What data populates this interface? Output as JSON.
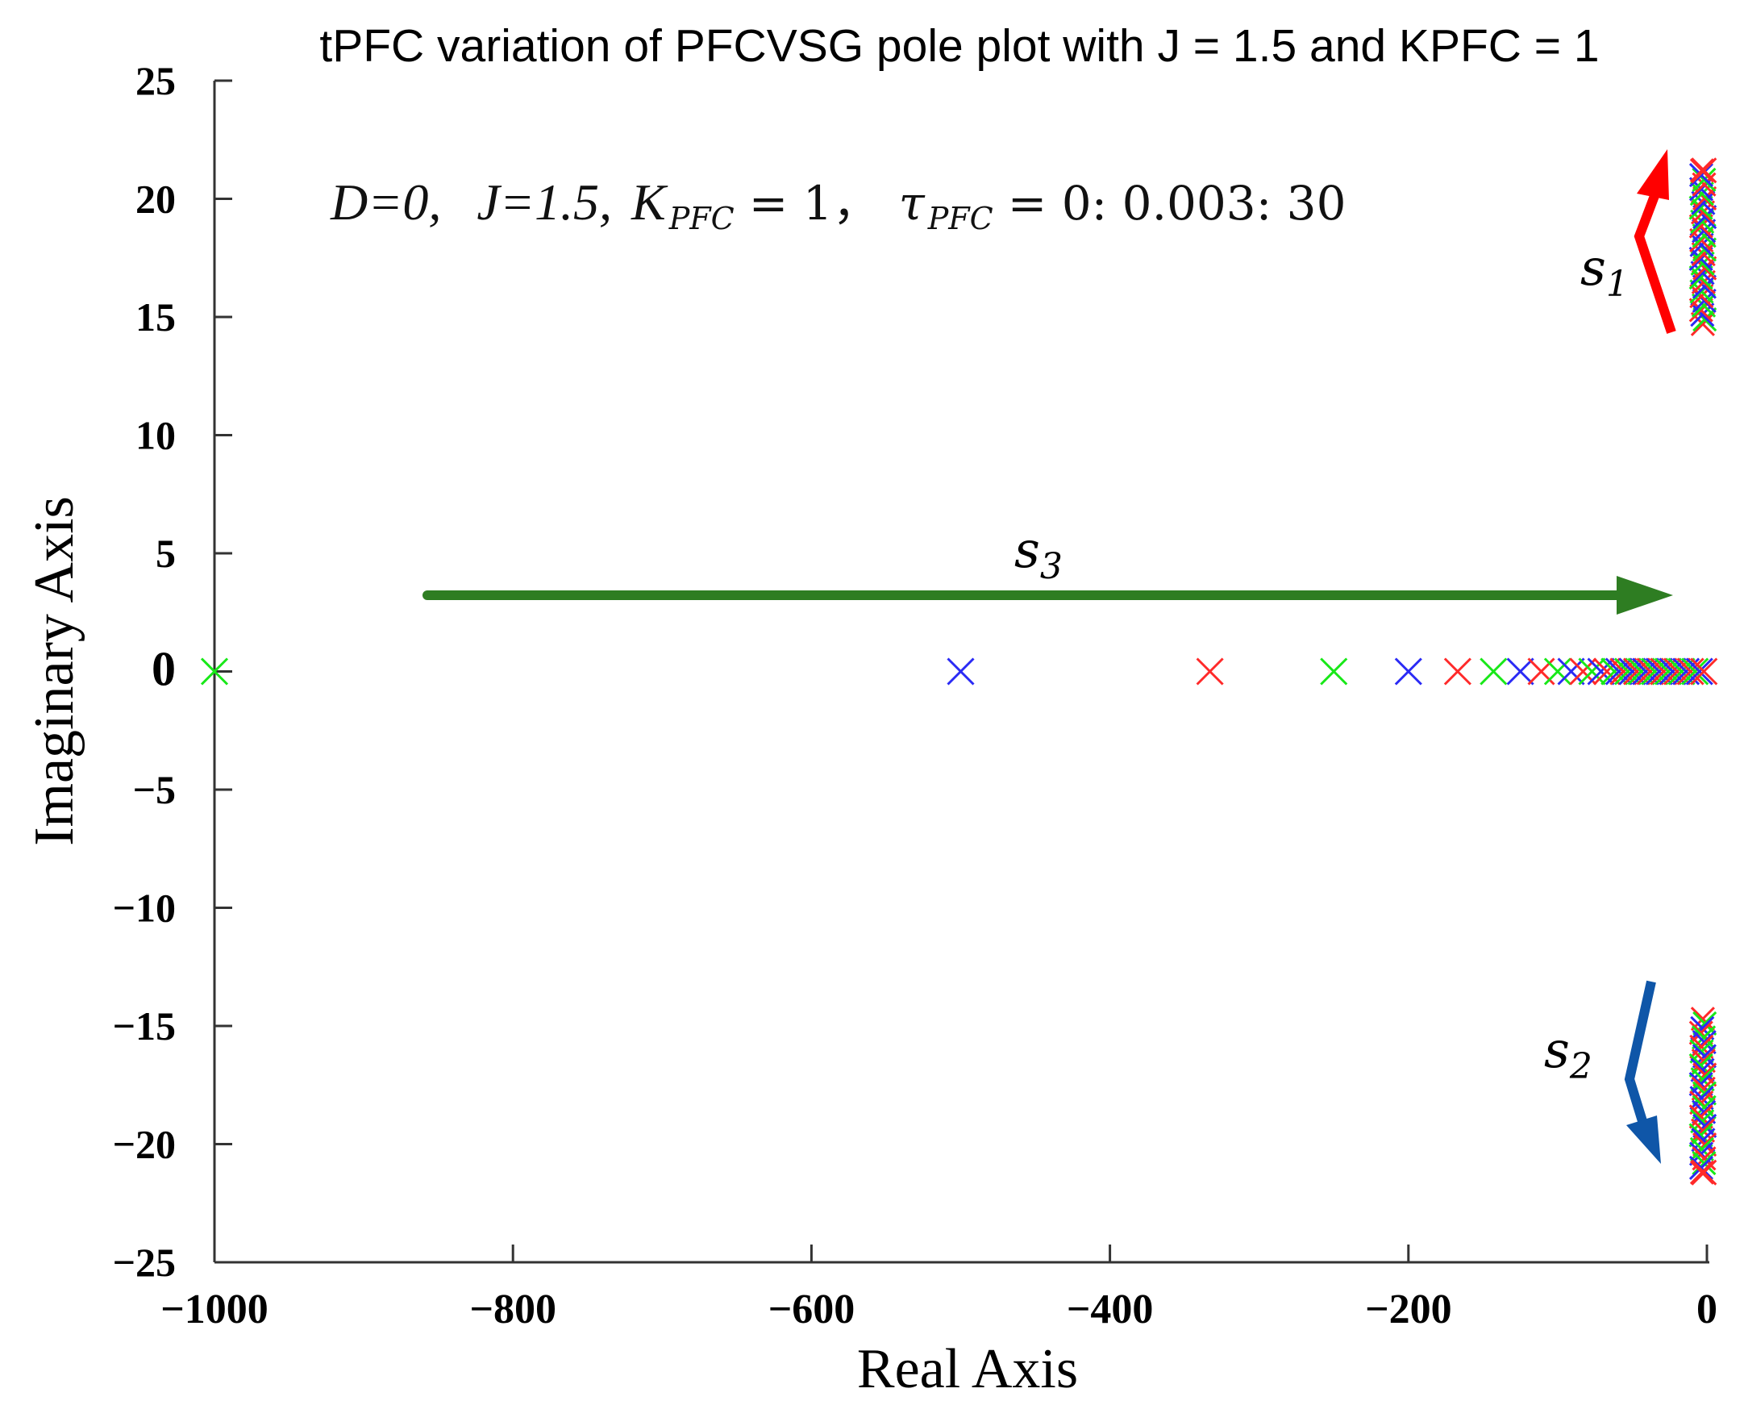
{
  "chart_data": {
    "type": "scatter",
    "title": "tPFC variation of PFCVSG pole plot with J = 1.5 and KPFC = 1",
    "xlabel": "Real Axis",
    "ylabel": "Imaginary Axis",
    "xlim": [
      -1000,
      0
    ],
    "ylim": [
      -25,
      25
    ],
    "xticks": [
      -1000,
      -800,
      -600,
      -400,
      -200,
      0
    ],
    "xtick_labels": [
      "−1000",
      "−800",
      "−600",
      "−400",
      "−200",
      "0"
    ],
    "yticks": [
      25,
      20,
      15,
      10,
      5,
      0,
      -5,
      -10,
      -15,
      -20,
      -25
    ],
    "ytick_labels": [
      "25",
      "20",
      "15",
      "10",
      "5",
      "0",
      "−5",
      "−10",
      "−15",
      "−20",
      "−25"
    ],
    "marker": "x",
    "series_colors": [
      "#ff2a2a",
      "#18e818",
      "#2a2af5"
    ],
    "parameter_annotation": {
      "D": "D=0,",
      "J": "J=1.5,",
      "K_symbol": "K",
      "K_sub": "PFC",
      "K_value": "= 1，",
      "tau_symbol": "τ",
      "tau_sub": "PFC",
      "tau_value": "= 0: 0.003: 30"
    },
    "real_poles": [
      {
        "x": -1000,
        "y": 0,
        "color": "#18e818"
      },
      {
        "x": -500,
        "y": 0,
        "color": "#2a2af5"
      },
      {
        "x": -333,
        "y": 0,
        "color": "#ff2a2a"
      },
      {
        "x": -250,
        "y": 0,
        "color": "#18e818"
      },
      {
        "x": -200,
        "y": 0,
        "color": "#2a2af5"
      },
      {
        "x": -167,
        "y": 0,
        "color": "#ff2a2a"
      },
      {
        "x": -143,
        "y": 0,
        "color": "#18e818"
      },
      {
        "x": -125,
        "y": 0,
        "color": "#2a2af5"
      },
      {
        "x": -111,
        "y": 0,
        "color": "#ff2a2a"
      },
      {
        "x": -100,
        "y": 0,
        "color": "#18e818"
      },
      {
        "x": -91,
        "y": 0,
        "color": "#2a2af5"
      },
      {
        "x": -83,
        "y": 0,
        "color": "#ff2a2a"
      },
      {
        "x": -77,
        "y": 0,
        "color": "#18e818"
      },
      {
        "x": -71,
        "y": 0,
        "color": "#2a2af5"
      },
      {
        "x": -67,
        "y": 0,
        "color": "#ff2a2a"
      },
      {
        "x": -62,
        "y": 0,
        "color": "#18e818"
      },
      {
        "x": -59,
        "y": 0,
        "color": "#2a2af5"
      },
      {
        "x": -56,
        "y": 0,
        "color": "#ff2a2a"
      },
      {
        "x": -53,
        "y": 0,
        "color": "#18e818"
      },
      {
        "x": -50,
        "y": 0,
        "color": "#2a2af5"
      },
      {
        "x": -47,
        "y": 0,
        "color": "#ff2a2a"
      },
      {
        "x": -44,
        "y": 0,
        "color": "#18e818"
      },
      {
        "x": -41,
        "y": 0,
        "color": "#2a2af5"
      },
      {
        "x": -38,
        "y": 0,
        "color": "#ff2a2a"
      },
      {
        "x": -35,
        "y": 0,
        "color": "#18e818"
      },
      {
        "x": -32,
        "y": 0,
        "color": "#2a2af5"
      },
      {
        "x": -29,
        "y": 0,
        "color": "#ff2a2a"
      },
      {
        "x": -26,
        "y": 0,
        "color": "#18e818"
      },
      {
        "x": -23,
        "y": 0,
        "color": "#2a2af5"
      },
      {
        "x": -20,
        "y": 0,
        "color": "#ff2a2a"
      },
      {
        "x": -17,
        "y": 0,
        "color": "#18e818"
      },
      {
        "x": -14,
        "y": 0,
        "color": "#2a2af5"
      },
      {
        "x": -11,
        "y": 0,
        "color": "#ff2a2a"
      },
      {
        "x": -8,
        "y": 0,
        "color": "#18e818"
      },
      {
        "x": -5,
        "y": 0,
        "color": "#2a2af5"
      },
      {
        "x": -2,
        "y": 0,
        "color": "#ff2a2a"
      }
    ],
    "complex_poles": {
      "real_range": [
        -5,
        0
      ],
      "imag_abs_range": [
        14.7,
        21.2
      ],
      "count_per_branch": 34,
      "last_color": "#ff2a2a"
    },
    "annotations": [
      {
        "label": "s",
        "subscript": "1",
        "color": "#ff0000",
        "direction": "upward along positive imaginary branch"
      },
      {
        "label": "s",
        "subscript": "2",
        "color": "#0f56a8",
        "direction": "downward along negative imaginary branch"
      },
      {
        "label": "s",
        "subscript": "3",
        "color": "#2e7d22",
        "direction": "rightward along real axis"
      }
    ]
  }
}
